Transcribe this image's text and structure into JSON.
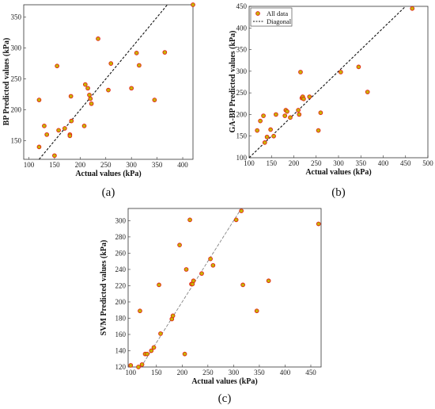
{
  "colors": {
    "marker_edge": "#e32119",
    "marker_fill": "#c8b400",
    "diagonal": "#111111",
    "diagonal_c": "#777777"
  },
  "chart_data": [
    {
      "id": "a",
      "type": "scatter",
      "panel_label": "(a)",
      "xlabel": "Actual values (kPa)",
      "ylabel": "BP Predicted values (kPa)",
      "xlim": [
        90,
        420
      ],
      "ylim": [
        120,
        370
      ],
      "xticks": [
        100,
        150,
        200,
        250,
        300,
        350,
        400
      ],
      "yticks": [
        150,
        200,
        250,
        300,
        350
      ],
      "diagonal": true,
      "diagonal_style": "dashed",
      "legend": [],
      "points": [
        {
          "x": 120,
          "y": 216
        },
        {
          "x": 120,
          "y": 140
        },
        {
          "x": 130,
          "y": 174
        },
        {
          "x": 135,
          "y": 160
        },
        {
          "x": 150,
          "y": 126
        },
        {
          "x": 155,
          "y": 271
        },
        {
          "x": 158,
          "y": 167
        },
        {
          "x": 170,
          "y": 170
        },
        {
          "x": 180,
          "y": 160
        },
        {
          "x": 180,
          "y": 158
        },
        {
          "x": 182,
          "y": 222
        },
        {
          "x": 183,
          "y": 182
        },
        {
          "x": 208,
          "y": 174
        },
        {
          "x": 210,
          "y": 241
        },
        {
          "x": 215,
          "y": 235
        },
        {
          "x": 218,
          "y": 224
        },
        {
          "x": 220,
          "y": 218
        },
        {
          "x": 222,
          "y": 210
        },
        {
          "x": 235,
          "y": 315
        },
        {
          "x": 255,
          "y": 232
        },
        {
          "x": 260,
          "y": 275
        },
        {
          "x": 300,
          "y": 235
        },
        {
          "x": 310,
          "y": 292
        },
        {
          "x": 315,
          "y": 272
        },
        {
          "x": 345,
          "y": 216
        },
        {
          "x": 365,
          "y": 293
        },
        {
          "x": 420,
          "y": 370
        }
      ]
    },
    {
      "id": "b",
      "type": "scatter",
      "panel_label": "(b)",
      "xlabel": "Actual values (kPa)",
      "ylabel": "GA-BP Predicted values (kPa)",
      "xlim": [
        100,
        500
      ],
      "ylim": [
        100,
        450
      ],
      "xticks": [
        100,
        150,
        200,
        250,
        300,
        350,
        400,
        450,
        500
      ],
      "yticks": [
        100,
        150,
        200,
        250,
        300,
        350,
        400,
        450
      ],
      "diagonal": true,
      "diagonal_style": "dashed",
      "legend": [
        {
          "label": "All data",
          "kind": "marker"
        },
        {
          "label": "Diagonal",
          "kind": "dashed-line"
        }
      ],
      "points": [
        {
          "x": 118,
          "y": 163
        },
        {
          "x": 125,
          "y": 185
        },
        {
          "x": 132,
          "y": 197
        },
        {
          "x": 135,
          "y": 135
        },
        {
          "x": 140,
          "y": 148
        },
        {
          "x": 148,
          "y": 165
        },
        {
          "x": 155,
          "y": 150
        },
        {
          "x": 160,
          "y": 200
        },
        {
          "x": 180,
          "y": 197
        },
        {
          "x": 182,
          "y": 210
        },
        {
          "x": 185,
          "y": 207
        },
        {
          "x": 192,
          "y": 193
        },
        {
          "x": 210,
          "y": 210
        },
        {
          "x": 212,
          "y": 200
        },
        {
          "x": 215,
          "y": 298
        },
        {
          "x": 218,
          "y": 238
        },
        {
          "x": 220,
          "y": 241
        },
        {
          "x": 222,
          "y": 236
        },
        {
          "x": 235,
          "y": 241
        },
        {
          "x": 255,
          "y": 163
        },
        {
          "x": 260,
          "y": 204
        },
        {
          "x": 305,
          "y": 298
        },
        {
          "x": 345,
          "y": 310
        },
        {
          "x": 365,
          "y": 252
        },
        {
          "x": 465,
          "y": 445
        }
      ]
    },
    {
      "id": "c",
      "type": "scatter",
      "panel_label": "(c)",
      "xlabel": "Actual values (kPa)",
      "ylabel": "SVM Predicted values (kPa)",
      "xlim": [
        95,
        470
      ],
      "ylim": [
        120,
        315
      ],
      "xticks": [
        100,
        150,
        200,
        250,
        300,
        350,
        400,
        450
      ],
      "yticks": [
        120,
        140,
        160,
        180,
        200,
        220,
        240,
        260,
        280,
        300
      ],
      "diagonal": true,
      "diagonal_style": "dashed",
      "legend": [],
      "points": [
        {
          "x": 100,
          "y": 122
        },
        {
          "x": 115,
          "y": 120
        },
        {
          "x": 118,
          "y": 189
        },
        {
          "x": 122,
          "y": 123
        },
        {
          "x": 128,
          "y": 136
        },
        {
          "x": 132,
          "y": 136
        },
        {
          "x": 140,
          "y": 140
        },
        {
          "x": 145,
          "y": 144
        },
        {
          "x": 155,
          "y": 221
        },
        {
          "x": 158,
          "y": 161
        },
        {
          "x": 180,
          "y": 179
        },
        {
          "x": 182,
          "y": 183
        },
        {
          "x": 195,
          "y": 270
        },
        {
          "x": 205,
          "y": 136
        },
        {
          "x": 208,
          "y": 240
        },
        {
          "x": 215,
          "y": 301
        },
        {
          "x": 218,
          "y": 222
        },
        {
          "x": 220,
          "y": 222
        },
        {
          "x": 222,
          "y": 226
        },
        {
          "x": 238,
          "y": 235
        },
        {
          "x": 255,
          "y": 253
        },
        {
          "x": 260,
          "y": 245
        },
        {
          "x": 305,
          "y": 301
        },
        {
          "x": 315,
          "y": 312
        },
        {
          "x": 318,
          "y": 221
        },
        {
          "x": 345,
          "y": 189
        },
        {
          "x": 368,
          "y": 226
        },
        {
          "x": 465,
          "y": 296
        }
      ]
    }
  ]
}
